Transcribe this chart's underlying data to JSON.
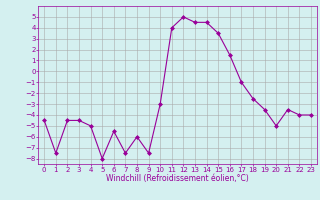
{
  "x": [
    0,
    1,
    2,
    3,
    4,
    5,
    6,
    7,
    8,
    9,
    10,
    11,
    12,
    13,
    14,
    15,
    16,
    17,
    18,
    19,
    20,
    21,
    22,
    23
  ],
  "y": [
    -4.5,
    -7.5,
    -4.5,
    -4.5,
    -5.0,
    -8.0,
    -5.5,
    -7.5,
    -6.0,
    -7.5,
    -3.0,
    4.0,
    5.0,
    4.5,
    4.5,
    3.5,
    1.5,
    -1.0,
    -2.5,
    -3.5,
    -5.0,
    -3.5,
    -4.0,
    -4.0
  ],
  "line_color": "#990099",
  "marker": "D",
  "markersize": 2,
  "linewidth": 0.8,
  "background_color": "#d4f0f0",
  "grid_color": "#aaaaaa",
  "xlabel": "Windchill (Refroidissement éolien,°C)",
  "xlabel_fontsize": 5.5,
  "tick_fontsize": 5,
  "ylim": [
    -8.5,
    6.0
  ],
  "xlim": [
    -0.5,
    23.5
  ],
  "yticks": [
    -8,
    -7,
    -6,
    -5,
    -4,
    -3,
    -2,
    -1,
    0,
    1,
    2,
    3,
    4,
    5
  ],
  "xticks": [
    0,
    1,
    2,
    3,
    4,
    5,
    6,
    7,
    8,
    9,
    10,
    11,
    12,
    13,
    14,
    15,
    16,
    17,
    18,
    19,
    20,
    21,
    22,
    23
  ]
}
